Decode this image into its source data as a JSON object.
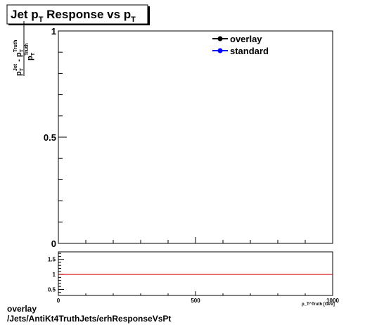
{
  "chart_data": [
    {
      "type": "line",
      "title_main": "Jet p",
      "title_sub": "T",
      "title_rest": " Response vs p",
      "title_sub2": "T",
      "ylabel": {
        "num_p": "p",
        "num_sub": "T",
        "num_sup": "Jet",
        "minus": " - p",
        "num_sub2": "T",
        "num_sup2": "Truth",
        "den_p": "p",
        "den_sub": "T",
        "den_sup": "Truth"
      },
      "xlim": [
        0,
        1000
      ],
      "ylim": [
        0,
        1
      ],
      "yticks": [
        {
          "value": 0,
          "label": "0"
        },
        {
          "value": 0.5,
          "label": "0.5"
        },
        {
          "value": 1,
          "label": "1"
        }
      ],
      "legend_position": "top-right",
      "series": [
        {
          "name": "overlay",
          "color": "#000000",
          "x": [],
          "y": []
        },
        {
          "name": "standard",
          "color": "#0000ff",
          "x": [],
          "y": []
        }
      ]
    },
    {
      "type": "line",
      "xlim": [
        0,
        1000
      ],
      "ylim": [
        0.3,
        1.75
      ],
      "xticks": [
        {
          "value": 0,
          "label": "0"
        },
        {
          "value": 500,
          "label": "500"
        },
        {
          "value": 1000,
          "label": "1000"
        }
      ],
      "yticks": [
        {
          "value": 0.5,
          "label": "0.5"
        },
        {
          "value": 1,
          "label": "1"
        },
        {
          "value": 1.5,
          "label": "1.5"
        }
      ],
      "xlabel": "p_T^Truth [GeV]",
      "reference_line": {
        "y": 1,
        "color": "#cc0000"
      }
    }
  ],
  "footer": {
    "line1": "overlay",
    "line2": "/Jets/AntiKt4TruthJets/erhResponseVsPt"
  }
}
